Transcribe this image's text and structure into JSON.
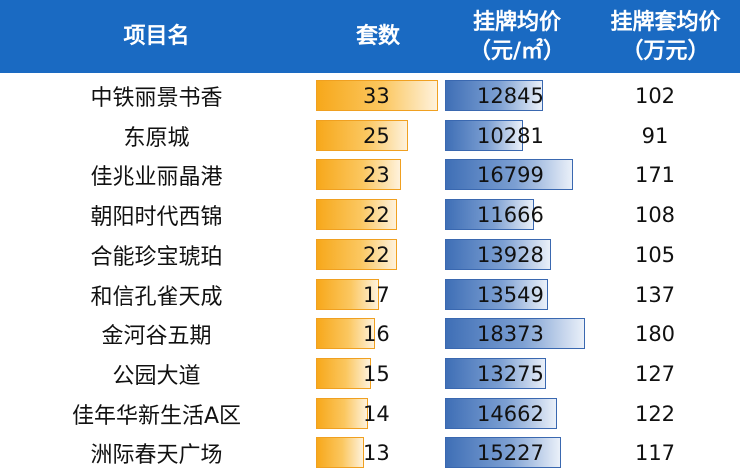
{
  "chart_data": {
    "type": "table",
    "columns": [
      {
        "lines": [
          "项目名"
        ]
      },
      {
        "lines": [
          "套数"
        ]
      },
      {
        "lines": [
          "挂牌均价",
          "（元/㎡）"
        ]
      },
      {
        "lines": [
          "挂牌套均价",
          "（万元）"
        ]
      }
    ],
    "rows": [
      {
        "name": "中铁丽景书香",
        "count": "33",
        "price": "12845",
        "total": "102"
      },
      {
        "name": "东原城",
        "count": "25",
        "price": "10281",
        "total": "91"
      },
      {
        "name": "佳兆业丽晶港",
        "count": "23",
        "price": "16799",
        "total": "171"
      },
      {
        "name": "朝阳时代西锦",
        "count": "22",
        "price": "11666",
        "total": "108"
      },
      {
        "name": "合能珍宝琥珀",
        "count": "22",
        "price": "13928",
        "total": "105"
      },
      {
        "name": "和信孔雀天成",
        "count": "17",
        "price": "13549",
        "total": "137"
      },
      {
        "name": "金河谷五期",
        "count": "16",
        "price": "18373",
        "total": "180"
      },
      {
        "name": "公园大道",
        "count": "15",
        "price": "13275",
        "total": "127"
      },
      {
        "name": "佳年华新生活A区",
        "count": "14",
        "price": "14662",
        "total": "122"
      },
      {
        "name": "洲际春天广场",
        "count": "13",
        "price": "15227",
        "total": "117"
      }
    ],
    "databar_max": {
      "count": 33,
      "price": 18373
    },
    "colors": {
      "header_bg": "#1a6ac2",
      "header_text": "#ffffff",
      "count_bar": "#f7a81b",
      "price_bar": "#3f6fb6"
    }
  }
}
